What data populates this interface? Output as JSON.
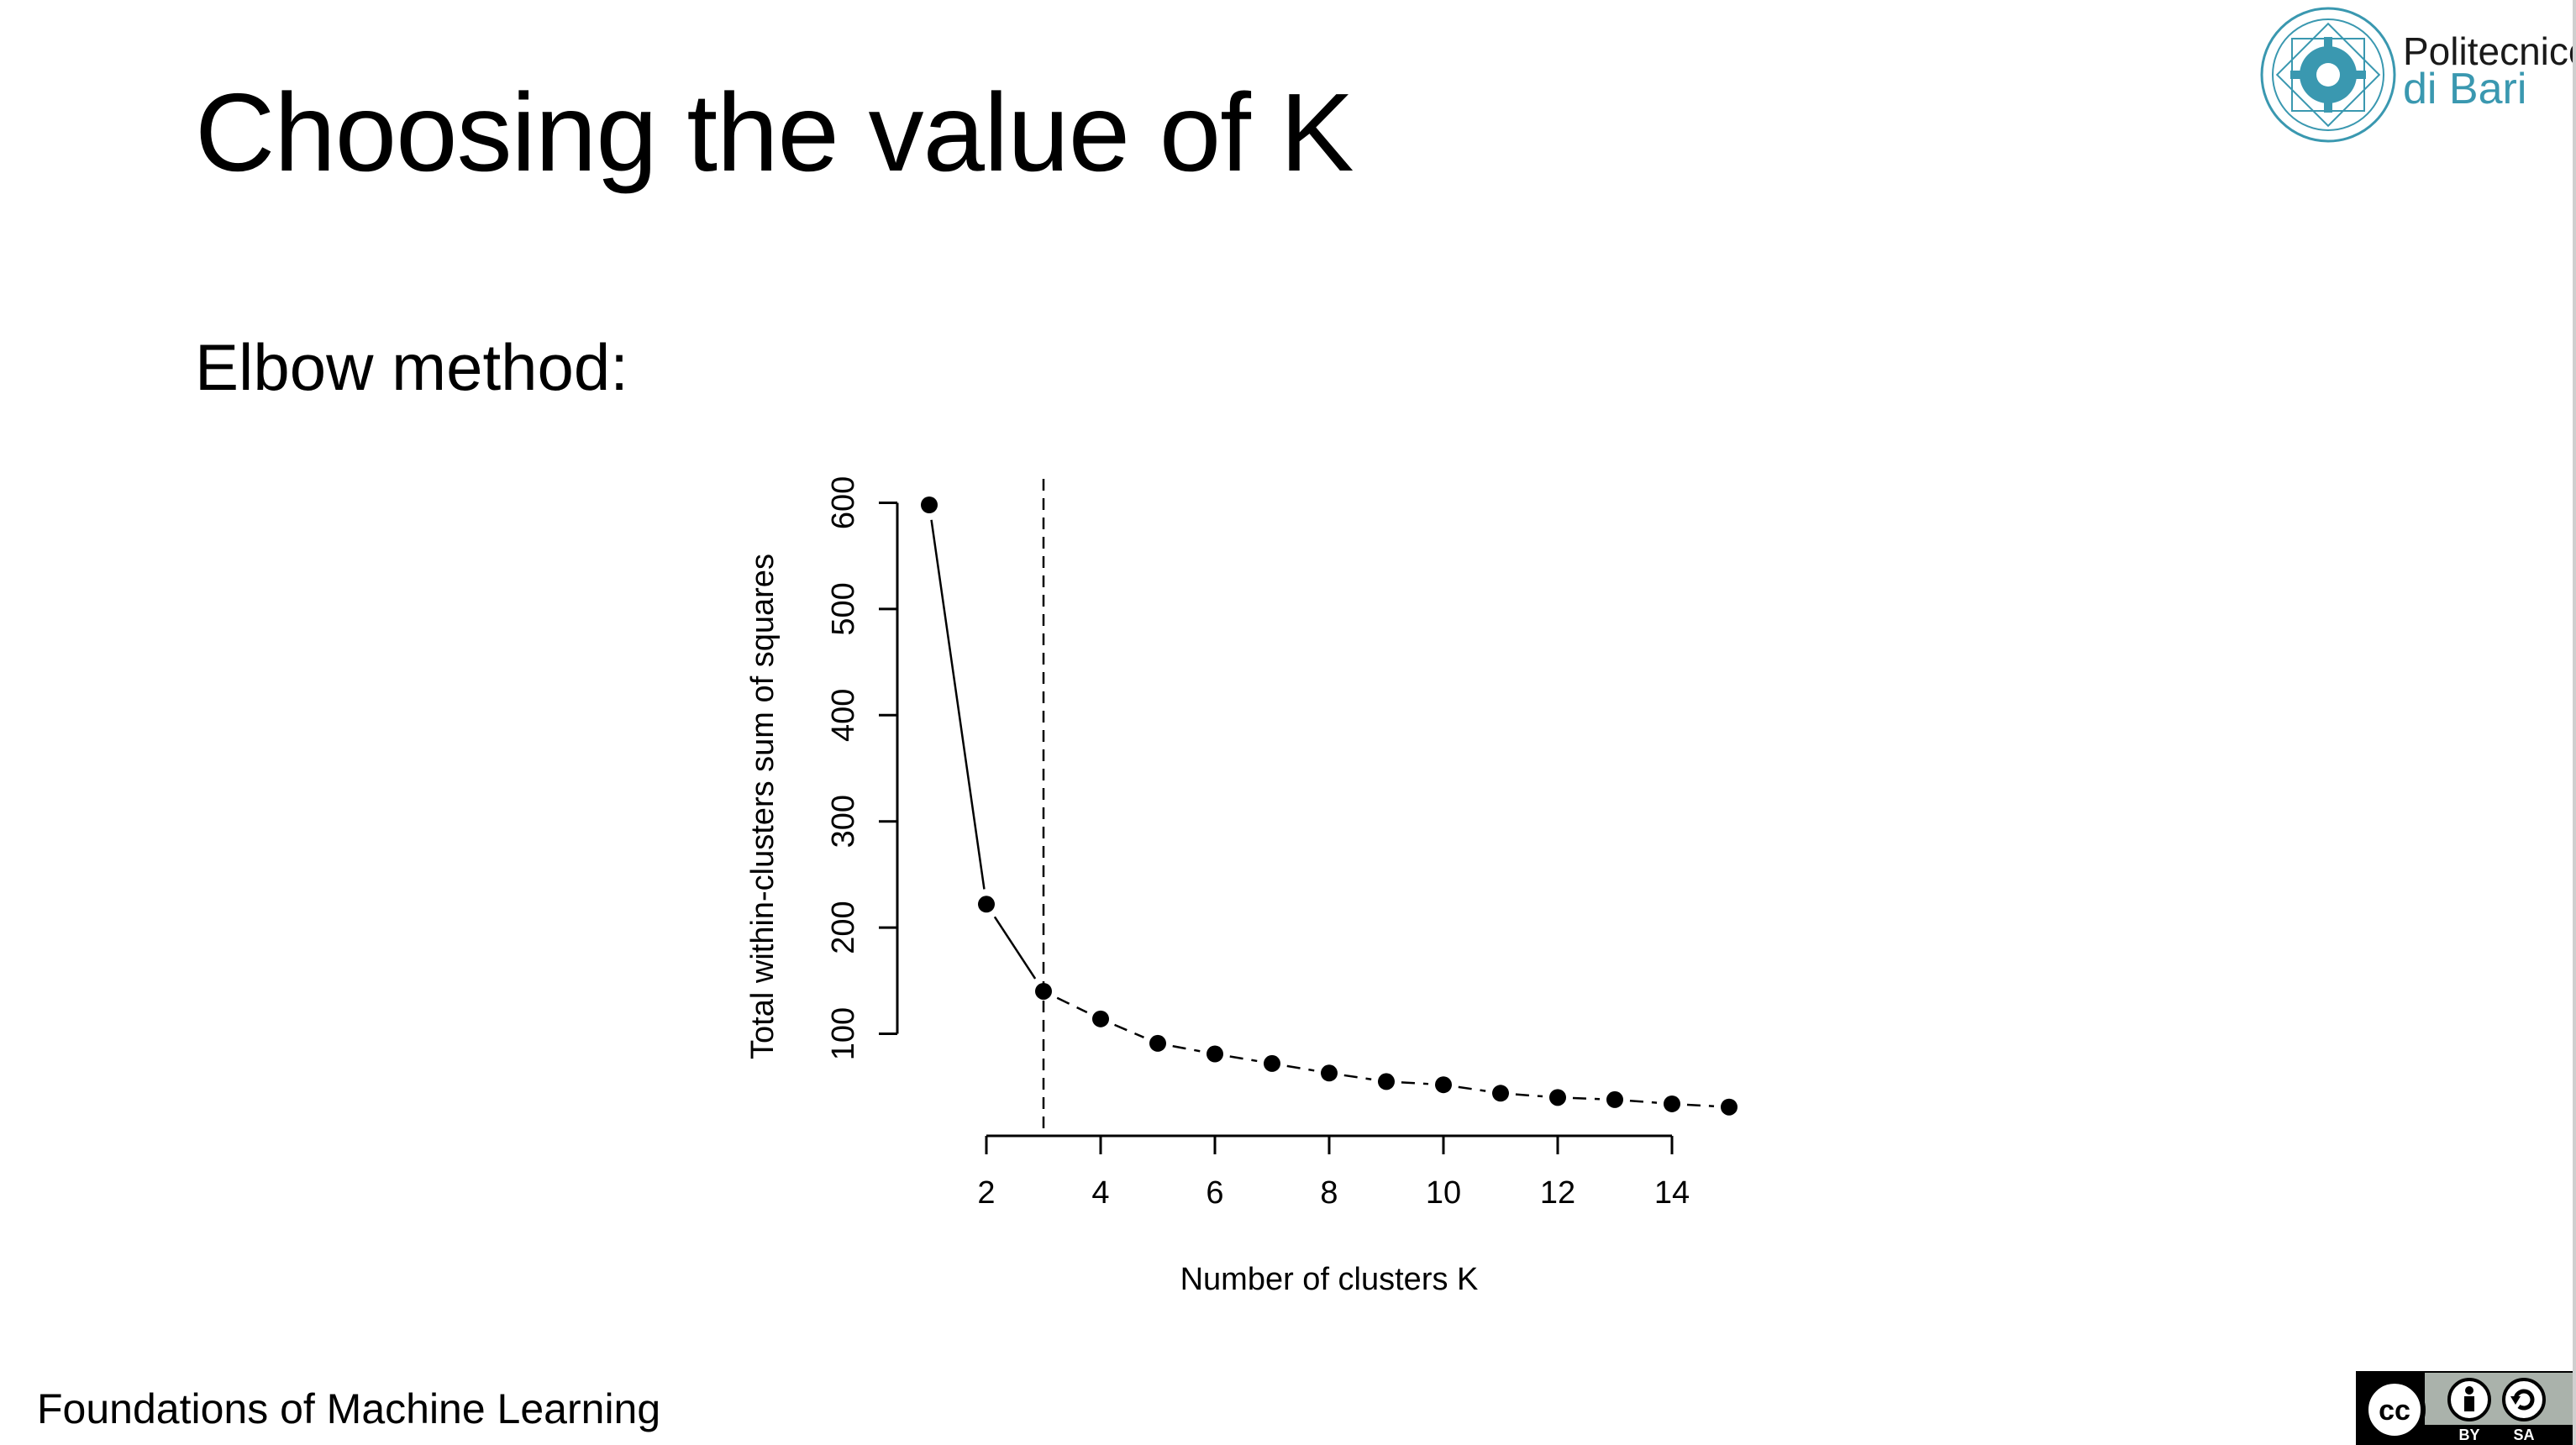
{
  "slide": {
    "title": "Choosing the value of K",
    "subtitle": "Elbow method:",
    "footer": "Foundations of Machine Learning"
  },
  "logo": {
    "line1": "Politecnico",
    "line2": "di Bari",
    "seal_text": "POLITECNICO DI BARI",
    "color": "#3a98b0"
  },
  "license": {
    "cc": "cc",
    "by": "BY",
    "sa": "SA"
  },
  "chart_data": {
    "type": "line",
    "title": "",
    "xlabel": "Number of clusters K",
    "ylabel": "Total within-clusters sum of squares",
    "x": [
      1,
      2,
      3,
      4,
      5,
      6,
      7,
      8,
      9,
      10,
      11,
      12,
      13,
      14,
      15
    ],
    "y": [
      598,
      222,
      140,
      114,
      91,
      81,
      72,
      63,
      55,
      52,
      44,
      40,
      38,
      34,
      31
    ],
    "x_ticks": [
      2,
      4,
      6,
      8,
      10,
      12,
      14
    ],
    "y_ticks": [
      100,
      200,
      300,
      400,
      500,
      600
    ],
    "xlim": [
      1,
      15
    ],
    "ylim": [
      30,
      598
    ],
    "vline_x": 3,
    "grid": false,
    "legend": "none",
    "line_style": "solid up to K=3, dashed after"
  }
}
